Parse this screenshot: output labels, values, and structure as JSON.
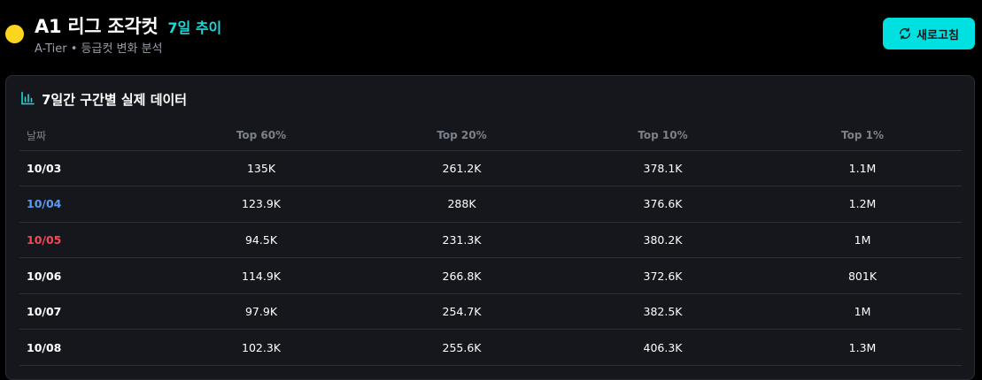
{
  "header": {
    "title": "A1 리그 조각컷",
    "trend_label": "7일 추이",
    "subtitle": "A-Tier • 등급컷 변화 분석",
    "refresh_label": "새로고침",
    "icons": {
      "league": "league-color-dot",
      "refresh": "refresh-icon"
    }
  },
  "colors": {
    "accent": "#00E0E0",
    "league_dot": "#FDD51F",
    "saturday": "#5B9BEF",
    "sunday": "#F04A56"
  },
  "panel": {
    "title": "7일간 구간별 실제 데이터",
    "icon": "bar-chart-icon",
    "columns": [
      "날짜",
      "Top 60%",
      "Top 20%",
      "Top 10%",
      "Top 1%"
    ],
    "rows": [
      {
        "date": "10/03",
        "day_type": "weekday",
        "top60": "135K",
        "top20": "261.2K",
        "top10": "378.1K",
        "top1": "1.1M"
      },
      {
        "date": "10/04",
        "day_type": "saturday",
        "top60": "123.9K",
        "top20": "288K",
        "top10": "376.6K",
        "top1": "1.2M"
      },
      {
        "date": "10/05",
        "day_type": "sunday",
        "top60": "94.5K",
        "top20": "231.3K",
        "top10": "380.2K",
        "top1": "1M"
      },
      {
        "date": "10/06",
        "day_type": "weekday",
        "top60": "114.9K",
        "top20": "266.8K",
        "top10": "372.6K",
        "top1": "801K"
      },
      {
        "date": "10/07",
        "day_type": "weekday",
        "top60": "97.9K",
        "top20": "254.7K",
        "top10": "382.5K",
        "top1": "1M"
      },
      {
        "date": "10/08",
        "day_type": "weekday",
        "top60": "102.3K",
        "top20": "255.6K",
        "top10": "406.3K",
        "top1": "1.3M"
      }
    ]
  }
}
